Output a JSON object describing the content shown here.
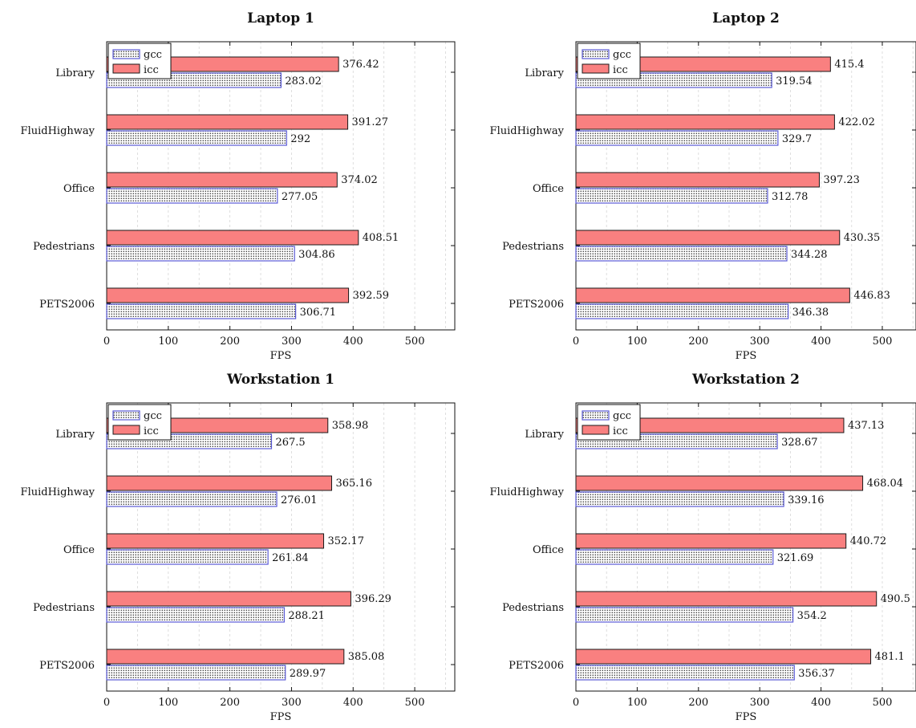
{
  "colors": {
    "gcc_stroke": "#5b5bd6",
    "icc_fill": "#f98080",
    "icc_stroke": "#1a1a1a",
    "grid": "#d6d6d6"
  },
  "chart_data": [
    {
      "type": "bar",
      "orientation": "horizontal",
      "title": "Laptop 1",
      "xlabel": "FPS",
      "ylabel": "",
      "categories": [
        "Library",
        "FluidHighway",
        "Office",
        "Pedestrians",
        "PETS2006"
      ],
      "xlim": [
        0,
        565
      ],
      "xticks": [
        0,
        100,
        200,
        300,
        400,
        500
      ],
      "legend": "top-left",
      "grid": true,
      "series": [
        {
          "name": "gcc",
          "values": [
            283.02,
            292,
            277.05,
            304.86,
            306.71
          ],
          "labels": [
            "283.02",
            "292",
            "277.05",
            "304.86",
            "306.71"
          ]
        },
        {
          "name": "icc",
          "values": [
            376.42,
            391.27,
            374.02,
            408.51,
            392.59
          ],
          "labels": [
            "376.42",
            "391.27",
            "374.02",
            "408.51",
            "392.59"
          ]
        }
      ]
    },
    {
      "type": "bar",
      "orientation": "horizontal",
      "title": "Laptop 2",
      "xlabel": "FPS",
      "ylabel": "",
      "categories": [
        "Library",
        "FluidHighway",
        "Office",
        "Pedestrians",
        "PETS2006"
      ],
      "xlim": [
        0,
        555
      ],
      "xticks": [
        0,
        100,
        200,
        300,
        400,
        500
      ],
      "legend": "top-left",
      "grid": true,
      "series": [
        {
          "name": "gcc",
          "values": [
            319.54,
            329.7,
            312.78,
            344.28,
            346.38
          ],
          "labels": [
            "319.54",
            "329.7",
            "312.78",
            "344.28",
            "346.38"
          ]
        },
        {
          "name": "icc",
          "values": [
            415.4,
            422.02,
            397.23,
            430.35,
            446.83
          ],
          "labels": [
            "415.4",
            "422.02",
            "397.23",
            "430.35",
            "446.83"
          ]
        }
      ]
    },
    {
      "type": "bar",
      "orientation": "horizontal",
      "title": "Workstation 1",
      "xlabel": "FPS",
      "ylabel": "",
      "categories": [
        "Library",
        "FluidHighway",
        "Office",
        "Pedestrians",
        "PETS2006"
      ],
      "xlim": [
        0,
        565
      ],
      "xticks": [
        0,
        100,
        200,
        300,
        400,
        500
      ],
      "legend": "top-left",
      "grid": true,
      "series": [
        {
          "name": "gcc",
          "values": [
            267.5,
            276.01,
            261.84,
            288.21,
            289.97
          ],
          "labels": [
            "267.5",
            "276.01",
            "261.84",
            "288.21",
            "289.97"
          ]
        },
        {
          "name": "icc",
          "values": [
            358.98,
            365.16,
            352.17,
            396.29,
            385.08
          ],
          "labels": [
            "358.98",
            "365.16",
            "352.17",
            "396.29",
            "385.08"
          ]
        }
      ]
    },
    {
      "type": "bar",
      "orientation": "horizontal",
      "title": "Workstation 2",
      "xlabel": "FPS",
      "ylabel": "",
      "categories": [
        "Library",
        "FluidHighway",
        "Office",
        "Pedestrians",
        "PETS2006"
      ],
      "xlim": [
        0,
        555
      ],
      "xticks": [
        0,
        100,
        200,
        300,
        400,
        500
      ],
      "legend": "top-left",
      "grid": true,
      "series": [
        {
          "name": "gcc",
          "values": [
            328.67,
            339.16,
            321.69,
            354.2,
            356.37
          ],
          "labels": [
            "328.67",
            "339.16",
            "321.69",
            "354.2",
            "356.37"
          ]
        },
        {
          "name": "icc",
          "values": [
            437.13,
            468.04,
            440.72,
            490.5,
            481.1
          ],
          "labels": [
            "437.13",
            "468.04",
            "440.72",
            "490.5",
            "481.1"
          ]
        }
      ]
    }
  ]
}
